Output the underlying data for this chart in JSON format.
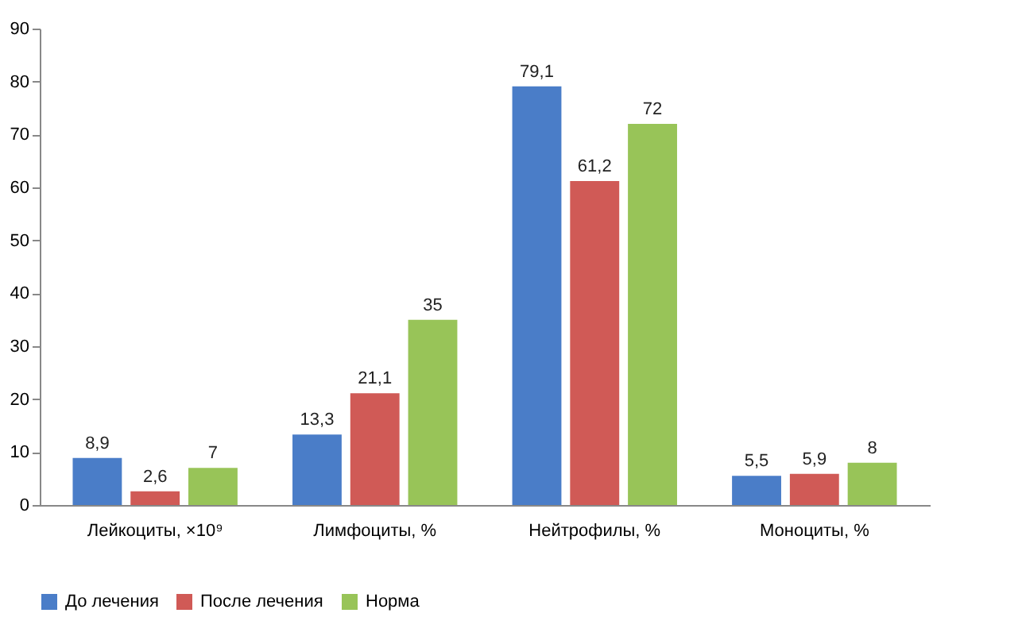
{
  "chart_data": {
    "type": "bar",
    "categories": [
      "Лейкоциты, ×10⁹",
      "Лимфоциты, %",
      "Нейтрофилы, %",
      "Моноциты, %"
    ],
    "series": [
      {
        "name": "До лечения",
        "color": "#4a7dc8",
        "values": [
          8.9,
          13.3,
          79.1,
          5.5
        ],
        "value_labels": [
          "8,9",
          "13,3",
          "79,1",
          "5,5"
        ]
      },
      {
        "name": "После лечения",
        "color": "#d05a56",
        "values": [
          2.6,
          21.1,
          61.2,
          5.9
        ],
        "value_labels": [
          "2,6",
          "21,1",
          "61,2",
          "5,9"
        ]
      },
      {
        "name": "Норма",
        "color": "#98c458",
        "values": [
          7,
          35,
          72,
          8
        ],
        "value_labels": [
          "7",
          "35",
          "72",
          "8"
        ]
      }
    ],
    "ylim": [
      0,
      90
    ],
    "yticks": [
      0,
      10,
      20,
      30,
      40,
      50,
      60,
      70,
      80,
      90
    ],
    "legend": "bottom left",
    "grid": false
  }
}
